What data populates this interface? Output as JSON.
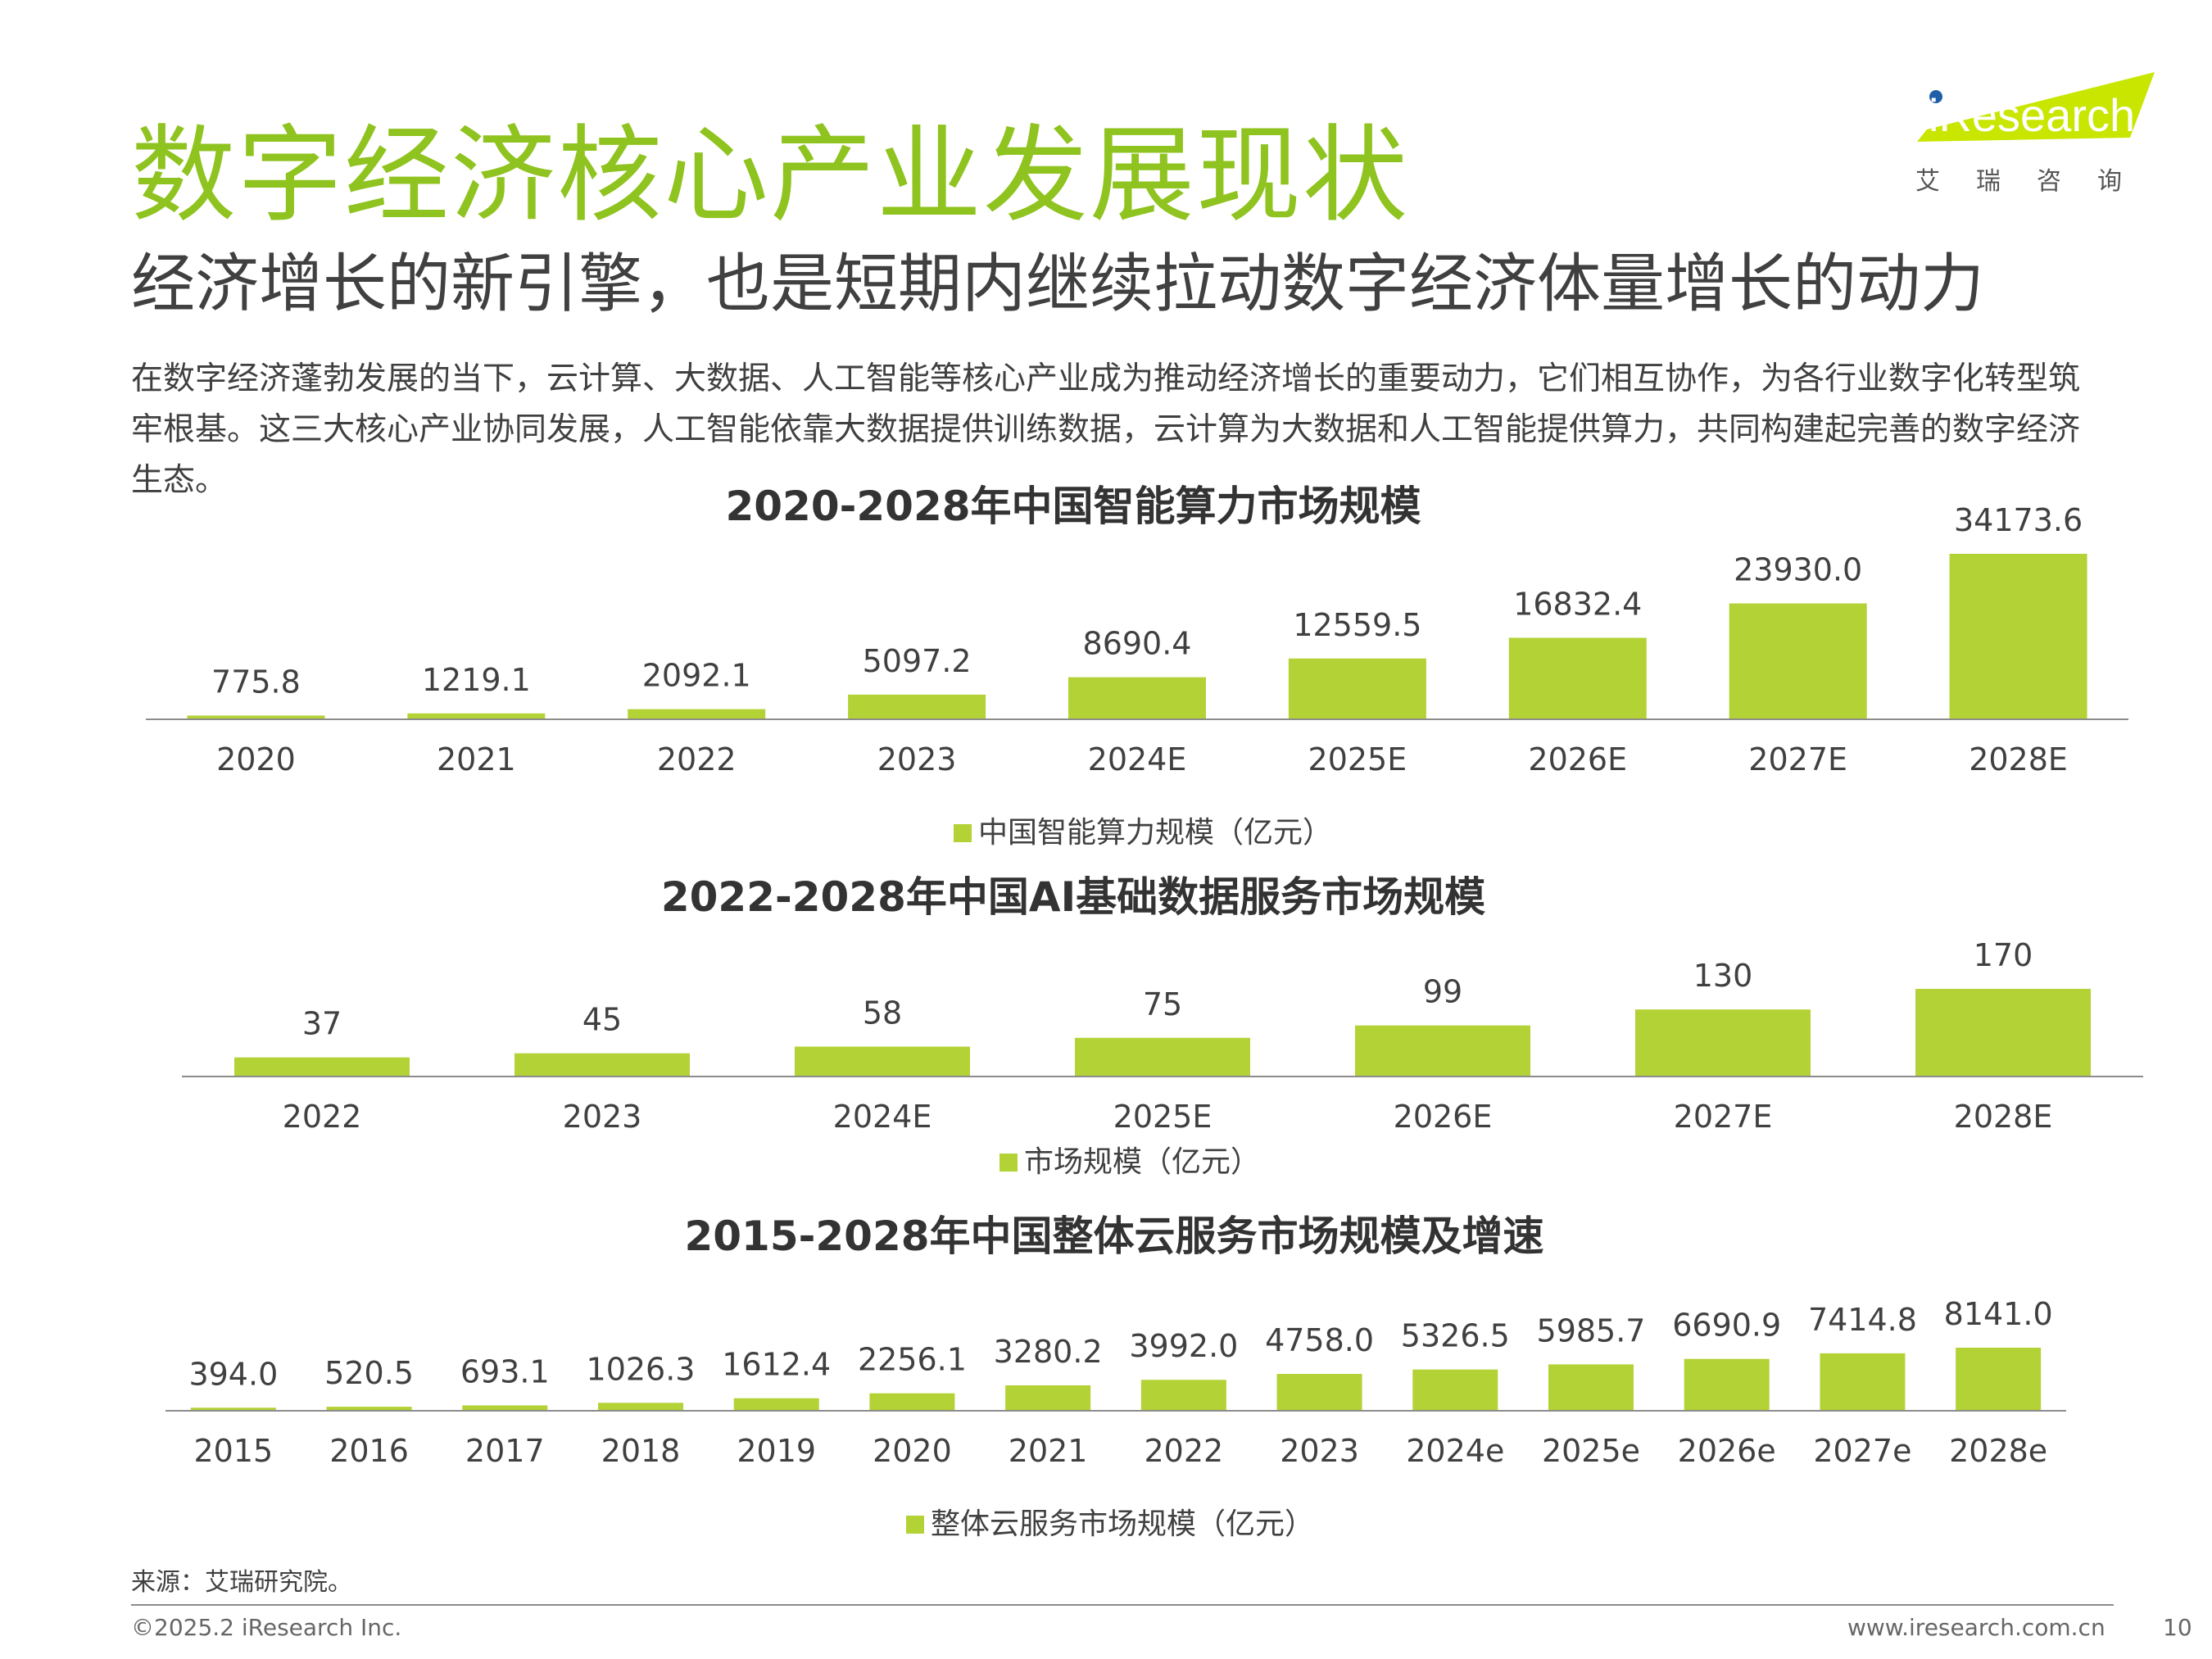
{
  "header": {
    "title": "数字经济核心产业发展现状",
    "subtitle": "经济增长的新引擎，也是短期内继续拉动数字经济体量增长的动力",
    "intro": "在数字经济蓬勃发展的当下，云计算、大数据、人工智能等核心产业成为推动经济增长的重要动力，它们相互协作，为各行业数字化转型筑牢根基。这三大核心产业协同发展，人工智能依靠大数据提供训练数据，云计算为大数据和人工智能提供算力，共同构建起完善的数字经济生态。"
  },
  "logo": {
    "name": "iResearch",
    "sub": "艾瑞咨询",
    "accent_color": "#c8e600",
    "dot_color": "#1f5fa8"
  },
  "colors": {
    "title_green": "#8fc31f",
    "bar_green": "#b3d235"
  },
  "chart_data": [
    {
      "type": "bar",
      "title": "2020-2028年中国智能算力市场规模",
      "categories": [
        "2020",
        "2021",
        "2022",
        "2023",
        "2024E",
        "2025E",
        "2026E",
        "2027E",
        "2028E"
      ],
      "series": [
        {
          "name": "中国智能算力规模（亿元）",
          "values": [
            775.8,
            1219.1,
            2092.1,
            5097.2,
            8690.4,
            12559.5,
            16832.4,
            23930.0,
            34173.6
          ],
          "labels": [
            "775.8",
            "1219.1",
            "2092.1",
            "5097.2",
            "8690.4",
            "12559.5",
            "16832.4",
            "23930.0",
            "34173.6"
          ]
        }
      ],
      "legend": "bottom",
      "grid": false
    },
    {
      "type": "bar",
      "title": "2022-2028年中国AI基础数据服务市场规模",
      "categories": [
        "2022",
        "2023",
        "2024E",
        "2025E",
        "2026E",
        "2027E",
        "2028E"
      ],
      "series": [
        {
          "name": "市场规模（亿元）",
          "values": [
            37,
            45,
            58,
            75,
            99,
            130,
            170
          ],
          "labels": [
            "37",
            "45",
            "58",
            "75",
            "99",
            "130",
            "170"
          ]
        }
      ],
      "legend": "bottom",
      "grid": false
    },
    {
      "type": "bar",
      "title": "2015-2028年中国整体云服务市场规模及增速",
      "categories": [
        "2015",
        "2016",
        "2017",
        "2018",
        "2019",
        "2020",
        "2021",
        "2022",
        "2023",
        "2024e",
        "2025e",
        "2026e",
        "2027e",
        "2028e"
      ],
      "series": [
        {
          "name": "整体云服务市场规模（亿元）",
          "values": [
            394.0,
            520.5,
            693.1,
            1026.3,
            1612.4,
            2256.1,
            3280.2,
            3992.0,
            4758.0,
            5326.5,
            5985.7,
            6690.9,
            7414.8,
            8141.0
          ],
          "labels": [
            "394.0",
            "520.5",
            "693.1",
            "1026.3",
            "1612.4",
            "2256.1",
            "3280.2",
            "3992.0",
            "4758.0",
            "5326.5",
            "5985.7",
            "6690.9",
            "7414.8",
            "8141.0"
          ]
        }
      ],
      "legend": "bottom",
      "grid": false
    }
  ],
  "footer": {
    "source": "来源：艾瑞研究院。",
    "copyright": "©2025.2 iResearch Inc.",
    "website": "www.iresearch.com.cn",
    "page": "10"
  }
}
